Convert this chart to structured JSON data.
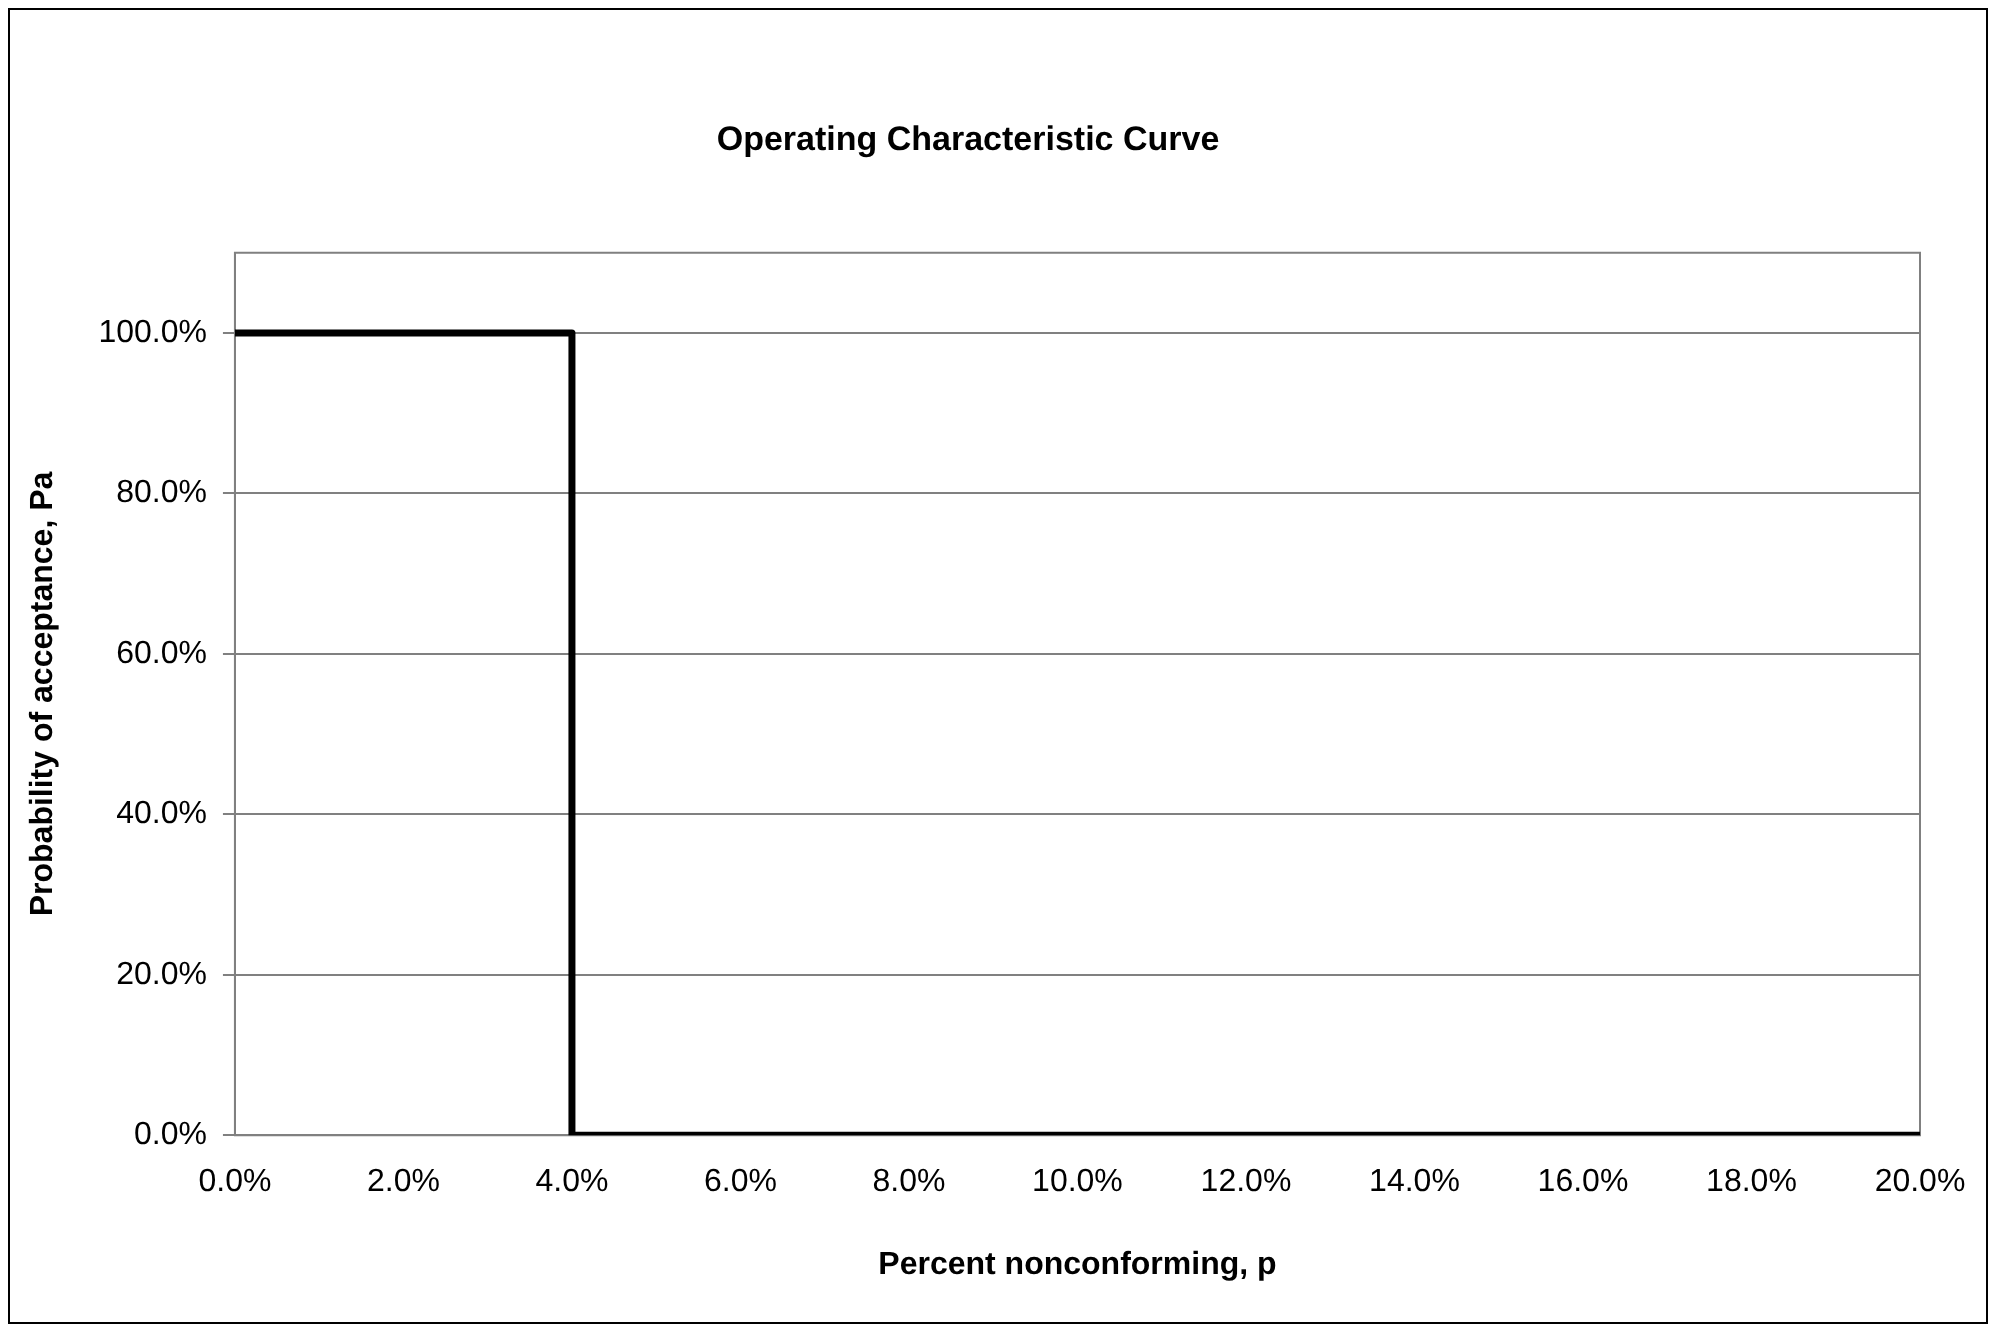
{
  "chart_data": {
    "type": "line",
    "title": "Operating Characteristic Curve",
    "xlabel": "Percent nonconforming, p",
    "ylabel": "Probability of acceptance, Pa",
    "series": [
      {
        "color": "#000000",
        "x": [
          0,
          4,
          4,
          20
        ],
        "values": [
          100,
          100,
          0,
          0
        ]
      }
    ],
    "xlim": [
      0,
      20
    ],
    "xticks": [
      {
        "value": 0,
        "label": "0.0%"
      },
      {
        "value": 2,
        "label": "2.0%"
      },
      {
        "value": 4,
        "label": "4.0%"
      },
      {
        "value": 6,
        "label": "6.0%"
      },
      {
        "value": 8,
        "label": "8.0%"
      },
      {
        "value": 10,
        "label": "10.0%"
      },
      {
        "value": 12,
        "label": "12.0%"
      },
      {
        "value": 14,
        "label": "14.0%"
      },
      {
        "value": 16,
        "label": "16.0%"
      },
      {
        "value": 18,
        "label": "18.0%"
      },
      {
        "value": 20,
        "label": "20.0%"
      }
    ],
    "ylim": [
      0,
      110
    ],
    "yticks": [
      {
        "value": 0,
        "label": "0.0%"
      },
      {
        "value": 20,
        "label": "20.0%"
      },
      {
        "value": 40,
        "label": "40.0%"
      },
      {
        "value": 60,
        "label": "60.0%"
      },
      {
        "value": 80,
        "label": "80.0%"
      },
      {
        "value": 100,
        "label": "100.0%"
      }
    ],
    "grid": "y",
    "legend": false,
    "marker": "none",
    "line_style": "solid"
  }
}
